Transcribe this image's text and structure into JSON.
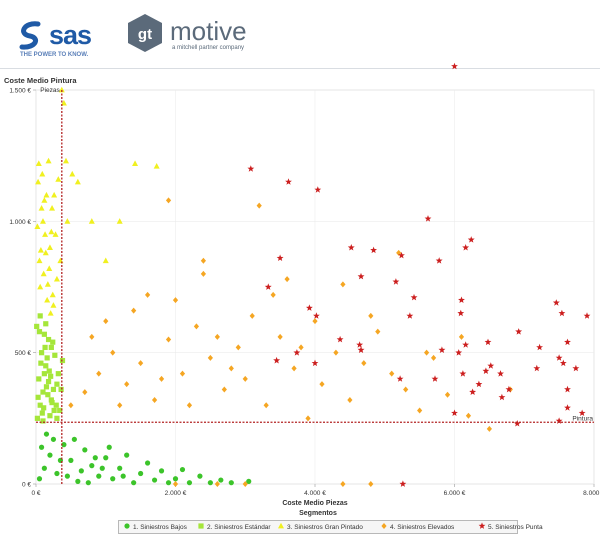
{
  "header": {
    "sas_logo_text": "sas",
    "sas_tagline": "THE POWER TO KNOW.",
    "gt_logo_text": "motive",
    "gt_logo_mark": "gt",
    "gt_tagline": "a mitchell partner company"
  },
  "colors": {
    "brand_blue": "#1f5aa6",
    "reference_line": "#b22222",
    "segments": [
      "#3cc42a",
      "#a5e63a",
      "#f0f020",
      "#f5a623",
      "#cc1f1f"
    ]
  },
  "chart_data": {
    "type": "scatter",
    "title": "Coste Medio Pintura",
    "xlabel": "Coste Medio Piezas",
    "ylabel": "",
    "xlim": [
      0,
      8000
    ],
    "ylim": [
      0,
      1500
    ],
    "xticks": [
      {
        "value": 0,
        "label": "0 €"
      },
      {
        "value": 2000,
        "label": "2.000 €"
      },
      {
        "value": 4000,
        "label": "4.000 €"
      },
      {
        "value": 6000,
        "label": "6.000 €"
      },
      {
        "value": 8000,
        "label": "8.000 €"
      }
    ],
    "yticks": [
      {
        "value": 0,
        "label": "0 €"
      },
      {
        "value": 500,
        "label": "500 €"
      },
      {
        "value": 1000,
        "label": "1.000 €"
      },
      {
        "value": 1500,
        "label": "1.500 €"
      }
    ],
    "grid": true,
    "reference_lines": [
      {
        "axis": "x",
        "value": 370,
        "label": "Piezas"
      },
      {
        "axis": "y",
        "value": 235,
        "label": "Pintura"
      }
    ],
    "legend": {
      "title": "Segmentos",
      "placement": "bottom"
    },
    "series": [
      {
        "name": "1. Siniestros Bajos",
        "marker": "circle",
        "points": [
          [
            50,
            20
          ],
          [
            120,
            60
          ],
          [
            200,
            110
          ],
          [
            300,
            40
          ],
          [
            400,
            150
          ],
          [
            500,
            90
          ],
          [
            600,
            10
          ],
          [
            700,
            130
          ],
          [
            800,
            70
          ],
          [
            900,
            30
          ],
          [
            1000,
            100
          ],
          [
            1100,
            20
          ],
          [
            1200,
            60
          ],
          [
            1300,
            110
          ],
          [
            1400,
            5
          ],
          [
            1500,
            40
          ],
          [
            1600,
            80
          ],
          [
            1700,
            15
          ],
          [
            1800,
            50
          ],
          [
            1900,
            5
          ],
          [
            2000,
            20
          ],
          [
            2100,
            55
          ],
          [
            2200,
            5
          ],
          [
            2350,
            30
          ],
          [
            2500,
            5
          ],
          [
            2650,
            15
          ],
          [
            2800,
            5
          ],
          [
            3050,
            10
          ],
          [
            150,
            190
          ],
          [
            250,
            170
          ],
          [
            80,
            140
          ],
          [
            350,
            90
          ],
          [
            450,
            30
          ],
          [
            550,
            170
          ],
          [
            650,
            50
          ],
          [
            750,
            5
          ],
          [
            850,
            100
          ],
          [
            950,
            60
          ],
          [
            1050,
            140
          ],
          [
            1250,
            30
          ]
        ]
      },
      {
        "name": "2. Siniestros Estándar",
        "marker": "square",
        "points": [
          [
            20,
            250
          ],
          [
            60,
            300
          ],
          [
            100,
            350
          ],
          [
            40,
            400
          ],
          [
            140,
            450
          ],
          [
            80,
            500
          ],
          [
            180,
            550
          ],
          [
            10,
            600
          ],
          [
            220,
            320
          ],
          [
            260,
            280
          ],
          [
            300,
            380
          ],
          [
            120,
            420
          ],
          [
            160,
            480
          ],
          [
            200,
            260
          ],
          [
            240,
            540
          ],
          [
            30,
            330
          ],
          [
            70,
            460
          ],
          [
            110,
            290
          ],
          [
            150,
            370
          ],
          [
            190,
            430
          ],
          [
            230,
            310
          ],
          [
            270,
            490
          ],
          [
            90,
            270
          ],
          [
            130,
            520
          ],
          [
            170,
            340
          ],
          [
            210,
            410
          ],
          [
            250,
            360
          ],
          [
            290,
            300
          ],
          [
            50,
            580
          ],
          [
            140,
            610
          ],
          [
            320,
            420
          ],
          [
            340,
            280
          ],
          [
            360,
            360
          ],
          [
            380,
            470
          ],
          [
            60,
            640
          ],
          [
            100,
            240
          ],
          [
            180,
            390
          ],
          [
            220,
            520
          ],
          [
            120,
            570
          ],
          [
            300,
            250
          ]
        ]
      },
      {
        "name": "3. Siniestros Gran Pintado",
        "marker": "triangle",
        "points": [
          [
            30,
            1150
          ],
          [
            80,
            1050
          ],
          [
            130,
            950
          ],
          [
            180,
            1230
          ],
          [
            50,
            850
          ],
          [
            100,
            1000
          ],
          [
            150,
            1100
          ],
          [
            200,
            900
          ],
          [
            60,
            750
          ],
          [
            110,
            800
          ],
          [
            160,
            700
          ],
          [
            210,
            650
          ],
          [
            40,
            1220
          ],
          [
            90,
            1180
          ],
          [
            140,
            880
          ],
          [
            190,
            820
          ],
          [
            240,
            720
          ],
          [
            260,
            1100
          ],
          [
            280,
            950
          ],
          [
            230,
            1050
          ],
          [
            320,
            1160
          ],
          [
            370,
            1500
          ],
          [
            400,
            1450
          ],
          [
            430,
            1230
          ],
          [
            520,
            1180
          ],
          [
            600,
            1150
          ],
          [
            800,
            1000
          ],
          [
            1000,
            850
          ],
          [
            1200,
            1000
          ],
          [
            1420,
            1220
          ],
          [
            1730,
            1210
          ],
          [
            450,
            1000
          ],
          [
            350,
            850
          ],
          [
            300,
            780
          ],
          [
            250,
            680
          ],
          [
            20,
            980
          ],
          [
            70,
            890
          ],
          [
            120,
            1080
          ],
          [
            170,
            760
          ],
          [
            220,
            960
          ]
        ]
      },
      {
        "name": "4. Siniestros Elevados",
        "marker": "diamond",
        "points": [
          [
            500,
            300
          ],
          [
            700,
            350
          ],
          [
            900,
            420
          ],
          [
            1100,
            500
          ],
          [
            1300,
            380
          ],
          [
            1500,
            460
          ],
          [
            1700,
            320
          ],
          [
            1900,
            550
          ],
          [
            2100,
            420
          ],
          [
            2300,
            600
          ],
          [
            2500,
            480
          ],
          [
            2700,
            360
          ],
          [
            2900,
            520
          ],
          [
            3100,
            640
          ],
          [
            3300,
            300
          ],
          [
            3500,
            560
          ],
          [
            3700,
            440
          ],
          [
            3900,
            250
          ],
          [
            4100,
            380
          ],
          [
            4300,
            500
          ],
          [
            4500,
            320
          ],
          [
            4700,
            460
          ],
          [
            4900,
            580
          ],
          [
            5100,
            420
          ],
          [
            5300,
            360
          ],
          [
            5500,
            280
          ],
          [
            5700,
            480
          ],
          [
            5900,
            340
          ],
          [
            6200,
            260
          ],
          [
            6500,
            210
          ],
          [
            6800,
            360
          ],
          [
            1000,
            620
          ],
          [
            1400,
            660
          ],
          [
            1800,
            400
          ],
          [
            2000,
            700
          ],
          [
            2200,
            300
          ],
          [
            2400,
            800
          ],
          [
            2600,
            560
          ],
          [
            2800,
            440
          ],
          [
            3200,
            1060
          ],
          [
            3600,
            780
          ],
          [
            4000,
            620
          ],
          [
            4400,
            760
          ],
          [
            4800,
            640
          ],
          [
            5200,
            880
          ],
          [
            5600,
            500
          ],
          [
            6100,
            560
          ],
          [
            3000,
            400
          ],
          [
            3400,
            720
          ],
          [
            3800,
            520
          ],
          [
            800,
            560
          ],
          [
            1200,
            300
          ],
          [
            1600,
            720
          ],
          [
            2000,
            0
          ],
          [
            2600,
            0
          ],
          [
            3000,
            0
          ],
          [
            4400,
            0
          ],
          [
            4800,
            0
          ],
          [
            1900,
            1080
          ],
          [
            2400,
            850
          ]
        ]
      },
      {
        "name": "5. Siniestros Punta",
        "marker": "star",
        "points": [
          [
            6000,
            1590
          ],
          [
            3080,
            1200
          ],
          [
            3620,
            1150
          ],
          [
            4040,
            1120
          ],
          [
            6240,
            930
          ],
          [
            6160,
            900
          ],
          [
            5620,
            1010
          ],
          [
            5240,
            870
          ],
          [
            4520,
            900
          ],
          [
            4840,
            890
          ],
          [
            3500,
            860
          ],
          [
            5780,
            850
          ],
          [
            4660,
            790
          ],
          [
            3330,
            750
          ],
          [
            5160,
            770
          ],
          [
            6100,
            700
          ],
          [
            6090,
            650
          ],
          [
            5420,
            710
          ],
          [
            3920,
            670
          ],
          [
            4020,
            640
          ],
          [
            5360,
            640
          ],
          [
            6160,
            530
          ],
          [
            4360,
            550
          ],
          [
            4660,
            510
          ],
          [
            4640,
            530
          ],
          [
            5820,
            510
          ],
          [
            6060,
            500
          ],
          [
            6480,
            540
          ],
          [
            6920,
            580
          ],
          [
            7220,
            520
          ],
          [
            7540,
            650
          ],
          [
            7460,
            690
          ],
          [
            7900,
            640
          ],
          [
            7620,
            540
          ],
          [
            7180,
            440
          ],
          [
            7560,
            460
          ],
          [
            7500,
            480
          ],
          [
            7740,
            440
          ],
          [
            6660,
            420
          ],
          [
            6520,
            450
          ],
          [
            6450,
            430
          ],
          [
            6120,
            420
          ],
          [
            6350,
            380
          ],
          [
            6260,
            350
          ],
          [
            5220,
            400
          ],
          [
            5720,
            400
          ],
          [
            6780,
            360
          ],
          [
            6680,
            330
          ],
          [
            7620,
            360
          ],
          [
            7830,
            270
          ],
          [
            7620,
            290
          ],
          [
            6900,
            230
          ],
          [
            7500,
            240
          ],
          [
            6000,
            270
          ],
          [
            5260,
            0
          ],
          [
            3740,
            500
          ],
          [
            4000,
            460
          ],
          [
            3450,
            470
          ]
        ]
      }
    ]
  }
}
